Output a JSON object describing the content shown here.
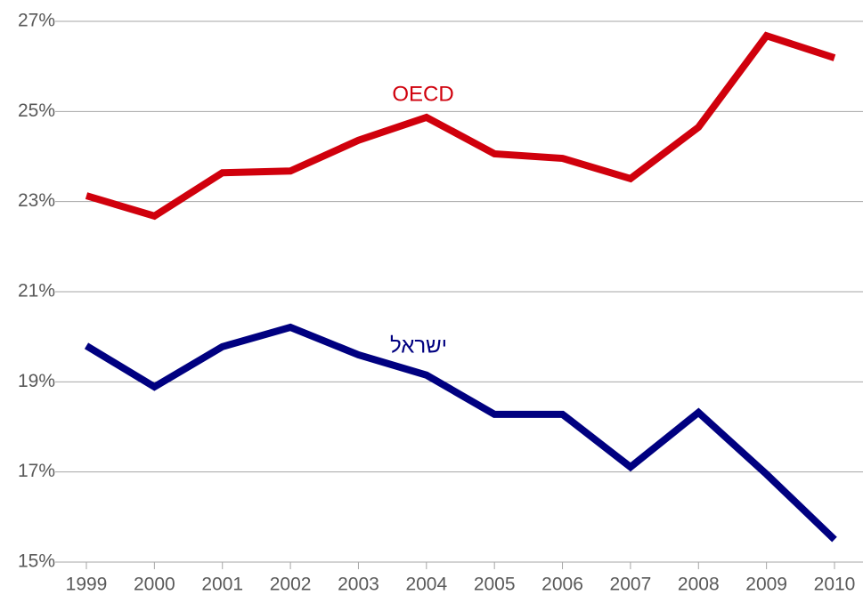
{
  "chart_data": {
    "type": "line",
    "categories": [
      "1999",
      "2000",
      "2001",
      "2002",
      "2003",
      "2004",
      "2005",
      "2006",
      "2007",
      "2008",
      "2009",
      "2010"
    ],
    "series": [
      {
        "name": "OECD",
        "color": "#d0000c",
        "values": [
          23.13,
          22.68,
          23.64,
          23.68,
          24.36,
          24.87,
          24.06,
          23.96,
          23.51,
          24.65,
          26.68,
          26.19
        ]
      },
      {
        "name": "ישראל",
        "color": "#000080",
        "values": [
          19.8,
          18.89,
          19.78,
          20.21,
          19.6,
          19.15,
          18.28,
          18.28,
          17.11,
          18.32,
          16.95,
          15.5
        ]
      }
    ],
    "ylim": [
      15,
      27
    ],
    "yticks": [
      {
        "value": 15,
        "label": "15%"
      },
      {
        "value": 17,
        "label": "17%"
      },
      {
        "value": 19,
        "label": "19%"
      },
      {
        "value": 21,
        "label": "21%"
      },
      {
        "value": 23,
        "label": "23%"
      },
      {
        "value": 25,
        "label": "25%"
      },
      {
        "value": 27,
        "label": "27%"
      }
    ],
    "grid": true
  }
}
